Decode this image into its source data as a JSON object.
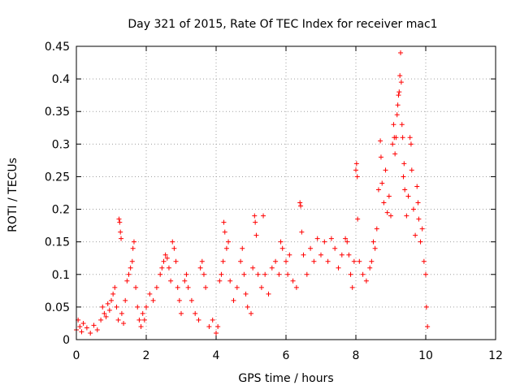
{
  "chart_data": {
    "type": "scatter",
    "title": "Day 321 of 2015, Rate Of TEC Index for receiver mac1",
    "xlabel": "GPS time / hours",
    "ylabel": "ROTI / TECUs",
    "xlim": [
      0,
      12
    ],
    "ylim": [
      0,
      0.45
    ],
    "xticks": [
      0,
      2,
      4,
      6,
      8,
      10,
      12
    ],
    "xtick_labels": [
      "0",
      "2",
      "4",
      "6",
      "8",
      "10",
      "12"
    ],
    "yticks": [
      0,
      0.05,
      0.1,
      0.15,
      0.2,
      0.25,
      0.3,
      0.35,
      0.4,
      0.45
    ],
    "ytick_labels": [
      "0",
      "0.05",
      "0.1",
      "0.15",
      "0.2",
      "0.25",
      "0.3",
      "0.35",
      "0.4",
      "0.45"
    ],
    "grid": true,
    "marker": "+",
    "color": "#ff0000",
    "series": [
      {
        "name": "ROTI",
        "points": [
          [
            0.0,
            0.015
          ],
          [
            0.05,
            0.03
          ],
          [
            0.1,
            0.02
          ],
          [
            0.15,
            0.012
          ],
          [
            0.2,
            0.025
          ],
          [
            0.3,
            0.018
          ],
          [
            0.4,
            0.01
          ],
          [
            0.5,
            0.022
          ],
          [
            0.6,
            0.015
          ],
          [
            0.7,
            0.03
          ],
          [
            0.75,
            0.05
          ],
          [
            0.8,
            0.04
          ],
          [
            0.85,
            0.035
          ],
          [
            0.9,
            0.055
          ],
          [
            0.95,
            0.045
          ],
          [
            1.0,
            0.06
          ],
          [
            1.05,
            0.07
          ],
          [
            1.1,
            0.08
          ],
          [
            1.15,
            0.05
          ],
          [
            1.2,
            0.03
          ],
          [
            1.22,
            0.185
          ],
          [
            1.24,
            0.18
          ],
          [
            1.26,
            0.165
          ],
          [
            1.28,
            0.155
          ],
          [
            1.3,
            0.04
          ],
          [
            1.35,
            0.025
          ],
          [
            1.4,
            0.06
          ],
          [
            1.45,
            0.09
          ],
          [
            1.5,
            0.1
          ],
          [
            1.55,
            0.11
          ],
          [
            1.6,
            0.12
          ],
          [
            1.62,
            0.14
          ],
          [
            1.65,
            0.15
          ],
          [
            1.7,
            0.08
          ],
          [
            1.75,
            0.05
          ],
          [
            1.8,
            0.03
          ],
          [
            1.85,
            0.02
          ],
          [
            1.9,
            0.04
          ],
          [
            1.95,
            0.03
          ],
          [
            2.0,
            0.05
          ],
          [
            2.1,
            0.07
          ],
          [
            2.2,
            0.06
          ],
          [
            2.3,
            0.08
          ],
          [
            2.4,
            0.1
          ],
          [
            2.45,
            0.11
          ],
          [
            2.5,
            0.12
          ],
          [
            2.55,
            0.13
          ],
          [
            2.6,
            0.125
          ],
          [
            2.65,
            0.11
          ],
          [
            2.7,
            0.09
          ],
          [
            2.75,
            0.15
          ],
          [
            2.8,
            0.14
          ],
          [
            2.85,
            0.12
          ],
          [
            2.9,
            0.08
          ],
          [
            2.95,
            0.06
          ],
          [
            3.0,
            0.04
          ],
          [
            3.1,
            0.09
          ],
          [
            3.15,
            0.1
          ],
          [
            3.2,
            0.08
          ],
          [
            3.3,
            0.06
          ],
          [
            3.4,
            0.04
          ],
          [
            3.5,
            0.03
          ],
          [
            3.55,
            0.11
          ],
          [
            3.6,
            0.12
          ],
          [
            3.65,
            0.1
          ],
          [
            3.7,
            0.08
          ],
          [
            3.8,
            0.02
          ],
          [
            3.9,
            0.03
          ],
          [
            4.0,
            0.01
          ],
          [
            4.05,
            0.02
          ],
          [
            4.1,
            0.09
          ],
          [
            4.15,
            0.1
          ],
          [
            4.2,
            0.12
          ],
          [
            4.22,
            0.18
          ],
          [
            4.25,
            0.165
          ],
          [
            4.3,
            0.14
          ],
          [
            4.35,
            0.15
          ],
          [
            4.4,
            0.09
          ],
          [
            4.5,
            0.06
          ],
          [
            4.6,
            0.08
          ],
          [
            4.7,
            0.12
          ],
          [
            4.75,
            0.14
          ],
          [
            4.8,
            0.1
          ],
          [
            4.85,
            0.07
          ],
          [
            4.9,
            0.05
          ],
          [
            5.0,
            0.04
          ],
          [
            5.05,
            0.11
          ],
          [
            5.1,
            0.19
          ],
          [
            5.12,
            0.18
          ],
          [
            5.15,
            0.16
          ],
          [
            5.2,
            0.1
          ],
          [
            5.3,
            0.08
          ],
          [
            5.35,
            0.19
          ],
          [
            5.4,
            0.1
          ],
          [
            5.5,
            0.07
          ],
          [
            5.6,
            0.11
          ],
          [
            5.7,
            0.12
          ],
          [
            5.8,
            0.1
          ],
          [
            5.85,
            0.15
          ],
          [
            5.9,
            0.14
          ],
          [
            6.0,
            0.12
          ],
          [
            6.05,
            0.1
          ],
          [
            6.1,
            0.13
          ],
          [
            6.2,
            0.09
          ],
          [
            6.3,
            0.08
          ],
          [
            6.4,
            0.21
          ],
          [
            6.42,
            0.205
          ],
          [
            6.45,
            0.165
          ],
          [
            6.5,
            0.13
          ],
          [
            6.6,
            0.1
          ],
          [
            6.7,
            0.14
          ],
          [
            6.8,
            0.12
          ],
          [
            6.9,
            0.155
          ],
          [
            7.0,
            0.13
          ],
          [
            7.1,
            0.15
          ],
          [
            7.2,
            0.12
          ],
          [
            7.3,
            0.155
          ],
          [
            7.4,
            0.14
          ],
          [
            7.5,
            0.11
          ],
          [
            7.6,
            0.13
          ],
          [
            7.7,
            0.155
          ],
          [
            7.75,
            0.15
          ],
          [
            7.8,
            0.13
          ],
          [
            7.85,
            0.1
          ],
          [
            7.9,
            0.08
          ],
          [
            7.95,
            0.12
          ],
          [
            8.0,
            0.26
          ],
          [
            8.02,
            0.27
          ],
          [
            8.04,
            0.25
          ],
          [
            8.05,
            0.185
          ],
          [
            8.1,
            0.12
          ],
          [
            8.2,
            0.1
          ],
          [
            8.3,
            0.09
          ],
          [
            8.4,
            0.11
          ],
          [
            8.45,
            0.12
          ],
          [
            8.5,
            0.15
          ],
          [
            8.55,
            0.14
          ],
          [
            8.6,
            0.17
          ],
          [
            8.65,
            0.23
          ],
          [
            8.7,
            0.305
          ],
          [
            8.72,
            0.28
          ],
          [
            8.75,
            0.24
          ],
          [
            8.8,
            0.21
          ],
          [
            8.85,
            0.26
          ],
          [
            8.9,
            0.195
          ],
          [
            8.95,
            0.22
          ],
          [
            9.0,
            0.19
          ],
          [
            9.05,
            0.3
          ],
          [
            9.08,
            0.33
          ],
          [
            9.1,
            0.31
          ],
          [
            9.12,
            0.285
          ],
          [
            9.15,
            0.31
          ],
          [
            9.18,
            0.345
          ],
          [
            9.2,
            0.36
          ],
          [
            9.22,
            0.375
          ],
          [
            9.24,
            0.38
          ],
          [
            9.26,
            0.405
          ],
          [
            9.28,
            0.44
          ],
          [
            9.3,
            0.395
          ],
          [
            9.32,
            0.33
          ],
          [
            9.34,
            0.31
          ],
          [
            9.36,
            0.25
          ],
          [
            9.38,
            0.27
          ],
          [
            9.4,
            0.23
          ],
          [
            9.45,
            0.19
          ],
          [
            9.5,
            0.22
          ],
          [
            9.55,
            0.31
          ],
          [
            9.58,
            0.3
          ],
          [
            9.6,
            0.26
          ],
          [
            9.65,
            0.2
          ],
          [
            9.7,
            0.16
          ],
          [
            9.75,
            0.235
          ],
          [
            9.78,
            0.21
          ],
          [
            9.8,
            0.185
          ],
          [
            9.85,
            0.15
          ],
          [
            9.9,
            0.17
          ],
          [
            9.95,
            0.12
          ],
          [
            10.0,
            0.1
          ],
          [
            10.02,
            0.05
          ],
          [
            10.05,
            0.02
          ]
        ]
      }
    ]
  }
}
